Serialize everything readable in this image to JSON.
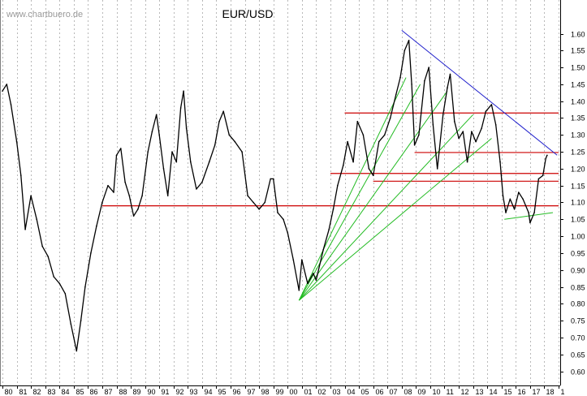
{
  "chart_data": {
    "type": "line",
    "title": "EUR/USD",
    "watermark": "www.chartbuero.de",
    "xlabel": "",
    "ylabel": "",
    "grid": true,
    "y_axis_side": "right",
    "ylim": [
      0.55,
      1.65
    ],
    "yticks": [
      "1.60",
      "1.55",
      "1.50",
      "1.45",
      "1.40",
      "1.35",
      "1.30",
      "1.25",
      "1.20",
      "1.15",
      "1.10",
      "1.05",
      "1.00",
      "0.95",
      "0.90",
      "0.85",
      "0.80",
      "0.75",
      "0.70",
      "0.65",
      "0.60"
    ],
    "xlim": [
      1980,
      2019
    ],
    "xtick_labels": [
      "80",
      "81",
      "82",
      "83",
      "84",
      "85",
      "86",
      "87",
      "88",
      "89",
      "90",
      "91",
      "92",
      "93",
      "94",
      "95",
      "96",
      "97",
      "98",
      "99",
      "00",
      "01",
      "02",
      "03",
      "04",
      "05",
      "06",
      "07",
      "08",
      "09",
      "10",
      "11",
      "12",
      "13",
      "14",
      "15",
      "16",
      "17",
      "18",
      "1"
    ],
    "colors": {
      "price": "#000000",
      "resistance": "#cc0000",
      "downtrend": "#2020cc",
      "uptrend": "#22bb22",
      "grid": "#b8b8b8"
    },
    "series": [
      {
        "values": [
          [
            1980.0,
            1.43
          ],
          [
            1980.3,
            1.45
          ],
          [
            1980.6,
            1.39
          ],
          [
            1981.0,
            1.28
          ],
          [
            1981.3,
            1.18
          ],
          [
            1981.6,
            1.02
          ],
          [
            1982.0,
            1.12
          ],
          [
            1982.4,
            1.05
          ],
          [
            1982.8,
            0.97
          ],
          [
            1983.2,
            0.94
          ],
          [
            1983.6,
            0.88
          ],
          [
            1984.0,
            0.86
          ],
          [
            1984.4,
            0.83
          ],
          [
            1984.8,
            0.74
          ],
          [
            1985.2,
            0.66
          ],
          [
            1985.5,
            0.75
          ],
          [
            1985.8,
            0.85
          ],
          [
            1986.2,
            0.95
          ],
          [
            1986.6,
            1.03
          ],
          [
            1987.0,
            1.1
          ],
          [
            1987.4,
            1.15
          ],
          [
            1987.8,
            1.13
          ],
          [
            1988.0,
            1.24
          ],
          [
            1988.3,
            1.26
          ],
          [
            1988.6,
            1.16
          ],
          [
            1988.9,
            1.12
          ],
          [
            1989.2,
            1.06
          ],
          [
            1989.5,
            1.08
          ],
          [
            1989.8,
            1.12
          ],
          [
            1990.2,
            1.25
          ],
          [
            1990.5,
            1.31
          ],
          [
            1990.8,
            1.36
          ],
          [
            1991.0,
            1.3
          ],
          [
            1991.3,
            1.2
          ],
          [
            1991.6,
            1.12
          ],
          [
            1991.9,
            1.25
          ],
          [
            1992.2,
            1.22
          ],
          [
            1992.5,
            1.38
          ],
          [
            1992.7,
            1.43
          ],
          [
            1992.9,
            1.32
          ],
          [
            1993.2,
            1.22
          ],
          [
            1993.6,
            1.14
          ],
          [
            1994.0,
            1.16
          ],
          [
            1994.5,
            1.22
          ],
          [
            1994.9,
            1.27
          ],
          [
            1995.2,
            1.34
          ],
          [
            1995.5,
            1.37
          ],
          [
            1995.9,
            1.3
          ],
          [
            1996.3,
            1.28
          ],
          [
            1996.8,
            1.25
          ],
          [
            1997.2,
            1.12
          ],
          [
            1997.6,
            1.1
          ],
          [
            1998.0,
            1.08
          ],
          [
            1998.4,
            1.1
          ],
          [
            1998.8,
            1.17
          ],
          [
            1999.0,
            1.17
          ],
          [
            1999.3,
            1.07
          ],
          [
            1999.7,
            1.05
          ],
          [
            2000.0,
            1.01
          ],
          [
            2000.4,
            0.93
          ],
          [
            2000.8,
            0.84
          ],
          [
            2001.0,
            0.93
          ],
          [
            2001.4,
            0.86
          ],
          [
            2001.8,
            0.89
          ],
          [
            2002.0,
            0.87
          ],
          [
            2002.5,
            0.96
          ],
          [
            2002.9,
            1.02
          ],
          [
            2003.2,
            1.08
          ],
          [
            2003.5,
            1.15
          ],
          [
            2003.9,
            1.21
          ],
          [
            2004.2,
            1.28
          ],
          [
            2004.6,
            1.22
          ],
          [
            2004.9,
            1.34
          ],
          [
            2005.3,
            1.3
          ],
          [
            2005.7,
            1.2
          ],
          [
            2006.0,
            1.18
          ],
          [
            2006.4,
            1.28
          ],
          [
            2006.8,
            1.3
          ],
          [
            2007.2,
            1.35
          ],
          [
            2007.6,
            1.42
          ],
          [
            2007.9,
            1.47
          ],
          [
            2008.2,
            1.55
          ],
          [
            2008.5,
            1.58
          ],
          [
            2008.7,
            1.45
          ],
          [
            2008.9,
            1.27
          ],
          [
            2009.2,
            1.3
          ],
          [
            2009.6,
            1.46
          ],
          [
            2009.9,
            1.5
          ],
          [
            2010.2,
            1.33
          ],
          [
            2010.5,
            1.2
          ],
          [
            2010.9,
            1.36
          ],
          [
            2011.2,
            1.44
          ],
          [
            2011.4,
            1.48
          ],
          [
            2011.7,
            1.34
          ],
          [
            2012.0,
            1.29
          ],
          [
            2012.3,
            1.31
          ],
          [
            2012.6,
            1.22
          ],
          [
            2012.9,
            1.31
          ],
          [
            2013.2,
            1.28
          ],
          [
            2013.6,
            1.32
          ],
          [
            2013.9,
            1.37
          ],
          [
            2014.3,
            1.39
          ],
          [
            2014.6,
            1.33
          ],
          [
            2014.9,
            1.22
          ],
          [
            2015.1,
            1.12
          ],
          [
            2015.3,
            1.07
          ],
          [
            2015.6,
            1.11
          ],
          [
            2015.9,
            1.08
          ],
          [
            2016.2,
            1.13
          ],
          [
            2016.5,
            1.11
          ],
          [
            2016.9,
            1.07
          ],
          [
            2017.0,
            1.04
          ],
          [
            2017.3,
            1.07
          ],
          [
            2017.6,
            1.17
          ],
          [
            2017.9,
            1.18
          ],
          [
            2018.1,
            1.23
          ],
          [
            2018.2,
            1.24
          ]
        ]
      }
    ],
    "resistance_lines": [
      {
        "level": 1.365,
        "x": [
          2004.0,
          2019.0
        ]
      },
      {
        "level": 1.248,
        "x": [
          2008.9,
          2019.0
        ]
      },
      {
        "level": 1.186,
        "x": [
          2003.0,
          2019.0
        ]
      },
      {
        "level": 1.163,
        "x": [
          2006.0,
          2019.0
        ]
      },
      {
        "level": 1.09,
        "x": [
          1987.0,
          2019.0
        ]
      }
    ],
    "downtrend_line": {
      "from": [
        2008.0,
        1.61
      ],
      "to": [
        2018.9,
        1.24
      ]
    },
    "uptrend_lines": [
      {
        "from": [
          2000.8,
          0.81
        ],
        "to": [
          2008.3,
          1.47
        ]
      },
      {
        "from": [
          2000.8,
          0.81
        ],
        "to": [
          2009.3,
          1.45
        ]
      },
      {
        "from": [
          2000.8,
          0.81
        ],
        "to": [
          2011.2,
          1.43
        ]
      },
      {
        "from": [
          2000.8,
          0.81
        ],
        "to": [
          2013.0,
          1.36
        ]
      },
      {
        "from": [
          2000.8,
          0.81
        ],
        "to": [
          2014.3,
          1.29
        ]
      },
      {
        "from": [
          2015.2,
          1.05
        ],
        "to": [
          2018.6,
          1.07
        ]
      }
    ]
  }
}
